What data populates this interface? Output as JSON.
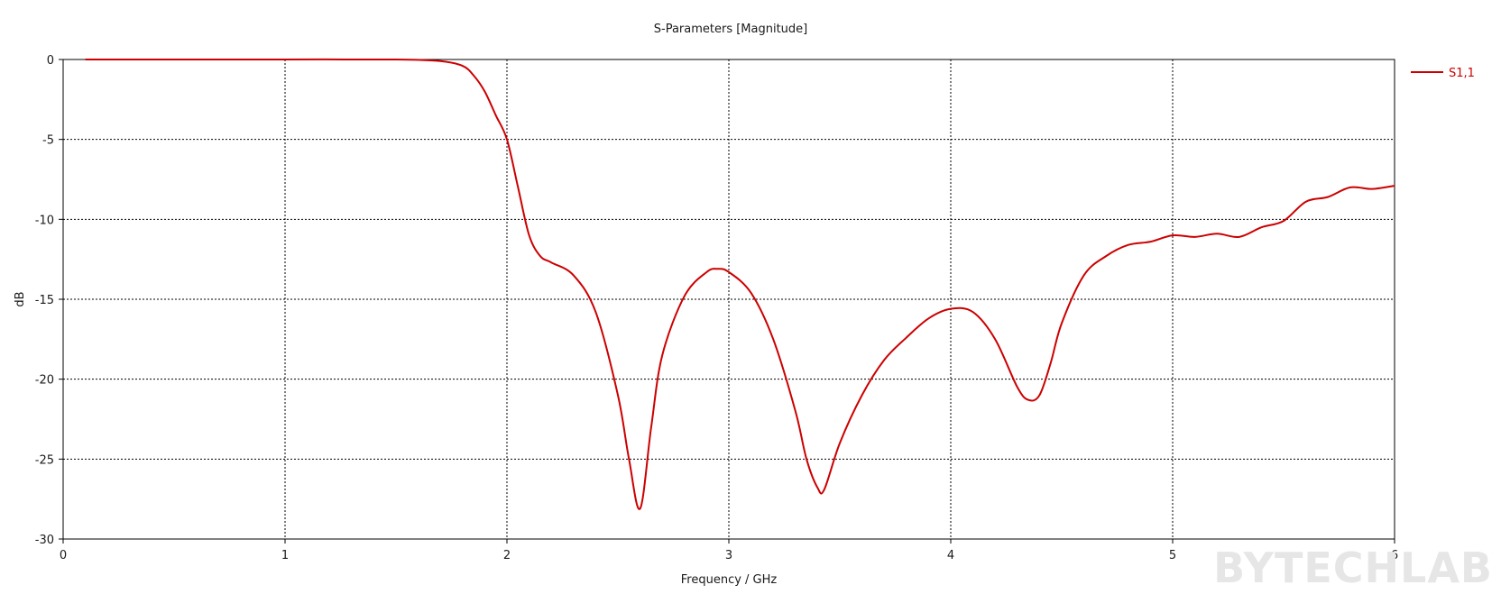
{
  "chart_data": {
    "type": "line",
    "title": "S-Parameters [Magnitude]",
    "xlabel": "Frequency / GHz",
    "ylabel": "dB",
    "xlim": [
      0,
      6
    ],
    "ylim": [
      -30,
      0
    ],
    "x_ticks": [
      0,
      1,
      2,
      3,
      4,
      5,
      6
    ],
    "y_ticks": [
      0,
      -5,
      -10,
      -15,
      -20,
      -25,
      -30
    ],
    "grid": true,
    "legend": "top-right",
    "series": [
      {
        "name": "S1,1",
        "color": "#cc0000",
        "x": [
          0.1,
          0.5,
          1.0,
          1.5,
          1.7,
          1.8,
          1.85,
          1.9,
          1.95,
          2.0,
          2.05,
          2.1,
          2.15,
          2.2,
          2.3,
          2.4,
          2.5,
          2.55,
          2.6,
          2.65,
          2.7,
          2.8,
          2.9,
          2.95,
          3.0,
          3.1,
          3.2,
          3.3,
          3.35,
          3.4,
          3.43,
          3.5,
          3.6,
          3.7,
          3.8,
          3.9,
          4.0,
          4.1,
          4.2,
          4.3,
          4.35,
          4.4,
          4.45,
          4.5,
          4.6,
          4.7,
          4.8,
          4.9,
          5.0,
          5.1,
          5.2,
          5.3,
          5.4,
          5.5,
          5.6,
          5.7,
          5.8,
          5.9,
          6.0
        ],
        "y": [
          0,
          0,
          0,
          0,
          -0.1,
          -0.4,
          -1.0,
          -2.0,
          -3.5,
          -5.0,
          -8.0,
          -11.0,
          -12.3,
          -12.7,
          -13.5,
          -15.8,
          -21.0,
          -25.0,
          -28.1,
          -23.0,
          -18.5,
          -14.8,
          -13.3,
          -13.1,
          -13.3,
          -14.6,
          -17.5,
          -22.0,
          -25.0,
          -26.8,
          -26.9,
          -24.0,
          -21.0,
          -18.8,
          -17.4,
          -16.2,
          -15.6,
          -15.8,
          -17.5,
          -20.5,
          -21.3,
          -21.0,
          -19.0,
          -16.5,
          -13.5,
          -12.3,
          -11.6,
          -11.4,
          -11.0,
          -11.1,
          -10.9,
          -11.1,
          -10.5,
          -10.1,
          -8.9,
          -8.6,
          -8.0,
          -8.1,
          -7.9
        ]
      }
    ]
  },
  "watermark": "BYTECHLAB"
}
